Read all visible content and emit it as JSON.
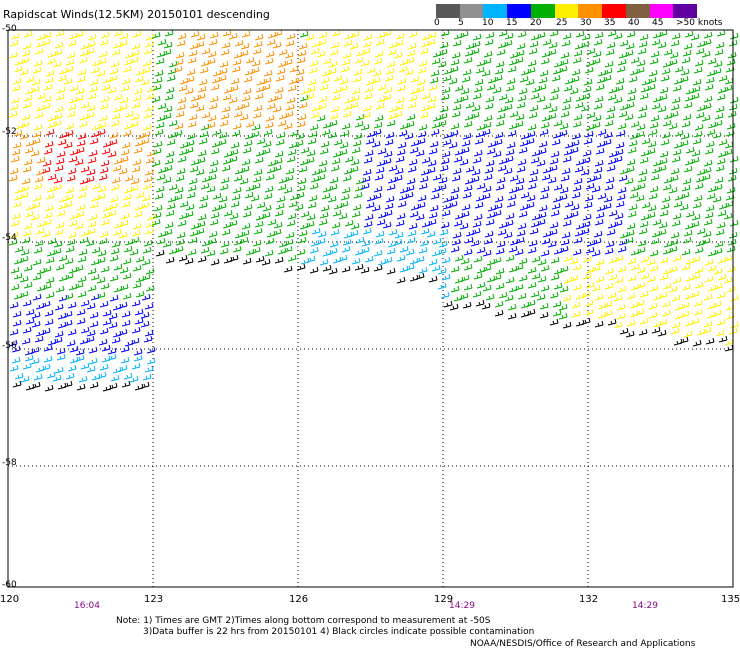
{
  "title": "Rapidscat Winds(12.5KM) 20150101 descending",
  "legend": {
    "labels": [
      "0",
      "5",
      "10",
      "15",
      "20",
      "25",
      "30",
      "35",
      "40",
      "45",
      ">50 knots"
    ],
    "colors": [
      "#585858",
      "#909090",
      "#00b4ff",
      "#0000ff",
      "#00b000",
      "#fff000",
      "#ff9000",
      "#ff0000",
      "#806040",
      "#ff00ff",
      "#6000a0"
    ]
  },
  "axes": {
    "lat_labels": [
      "-50",
      "-52",
      "-54",
      "-56",
      "-58",
      "-60"
    ],
    "lon_labels": [
      "120",
      "123",
      "126",
      "129",
      "132",
      "135"
    ]
  },
  "times": [
    "16:04",
    "14:29",
    "14:29"
  ],
  "notes": {
    "line1": "Note: 1) Times are GMT 2)Times along bottom correspond to measurement at -50S",
    "line2": "3)Data buffer is 22 hrs from 20150101 4) Black circles indicate possible contamination"
  },
  "credit": "NOAA/NESDIS/Office of Research and Applications"
}
